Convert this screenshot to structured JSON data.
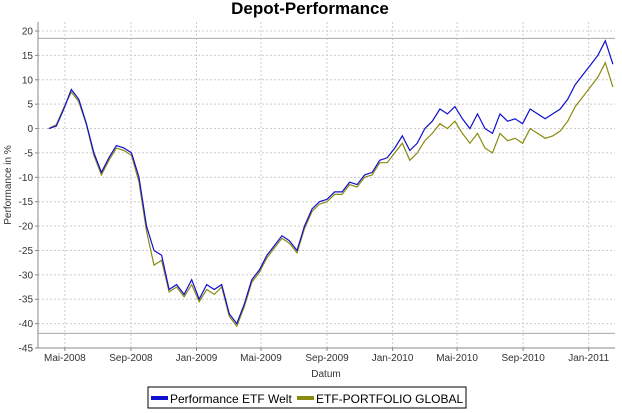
{
  "chart_data": {
    "type": "line",
    "title": "Depot-Performance",
    "xlabel": "Datum",
    "ylabel": "Performance in %",
    "ylim": [
      -45,
      21.85
    ],
    "xlim": [
      "2008-03-12",
      "2011-02-19"
    ],
    "yticks": [
      20,
      15,
      10,
      5,
      0,
      -5,
      -10,
      -15,
      -20,
      -25,
      -30,
      -35,
      -40,
      -45
    ],
    "xticks": [
      {
        "date": "2008-05-01",
        "label": "Mai-2008"
      },
      {
        "date": "2008-09-01",
        "label": "Sep-2008"
      },
      {
        "date": "2009-01-01",
        "label": "Jan-2009"
      },
      {
        "date": "2009-05-01",
        "label": "Mai-2009"
      },
      {
        "date": "2009-09-01",
        "label": "Sep-2009"
      },
      {
        "date": "2010-01-01",
        "label": "Jan-2010"
      },
      {
        "date": "2010-05-01",
        "label": "Mai-2010"
      },
      {
        "date": "2010-09-01",
        "label": "Sep-2010"
      },
      {
        "date": "2011-01-01",
        "label": "Jan-2011"
      }
    ],
    "grid": true,
    "legend_position": "bottom",
    "range_markers": [
      18.5,
      -42
    ],
    "x_start": "2008-04-01",
    "x_step_days": 14,
    "series": [
      {
        "name": "Performance ETF Welt",
        "color": "#1010d0",
        "values": [
          0,
          0.5,
          4,
          8,
          6,
          1,
          -5,
          -9,
          -6,
          -3.5,
          -4,
          -5,
          -10,
          -20,
          -25,
          -26,
          -33,
          -32,
          -34,
          -31,
          -35,
          -32,
          -33,
          -32,
          -38,
          -40,
          -36,
          -31,
          -29,
          -26,
          -24,
          -22,
          -23,
          -25,
          -20,
          -16.5,
          -15,
          -14.5,
          -13,
          -13,
          -11,
          -11.5,
          -9.5,
          -9,
          -6.5,
          -6,
          -4,
          -1.5,
          -4.5,
          -3,
          0,
          1.5,
          4,
          3,
          4.5,
          2,
          0,
          3,
          0,
          -1,
          3,
          1.5,
          2,
          1,
          4,
          3,
          2,
          3,
          4,
          6,
          9,
          11,
          13,
          15,
          18,
          13.2
        ]
      },
      {
        "name": "ETF-PORTFOLIO GLOBAL",
        "color": "#8a8a10",
        "values": [
          0,
          0.8,
          4.3,
          7.5,
          5.5,
          0.8,
          -5.5,
          -9.5,
          -6.5,
          -4,
          -4.5,
          -5.5,
          -11,
          -21,
          -28,
          -27,
          -33.5,
          -32.5,
          -34.5,
          -32,
          -35.5,
          -33,
          -34,
          -32.5,
          -38.5,
          -40.5,
          -36.5,
          -31.5,
          -29.5,
          -26.5,
          -24.5,
          -22.5,
          -23.5,
          -25.5,
          -20.5,
          -17,
          -15.5,
          -15,
          -13.5,
          -13.5,
          -11.5,
          -12,
          -10,
          -9.5,
          -7,
          -7,
          -5,
          -3,
          -6.5,
          -5,
          -2.5,
          -1,
          1,
          0,
          1.5,
          -1,
          -3,
          -1,
          -4,
          -5,
          -1,
          -2.5,
          -2,
          -3,
          0,
          -1,
          -2,
          -1.5,
          -0.5,
          1.5,
          4.5,
          6.5,
          8.5,
          10.5,
          13.5,
          8.5
        ]
      }
    ]
  }
}
